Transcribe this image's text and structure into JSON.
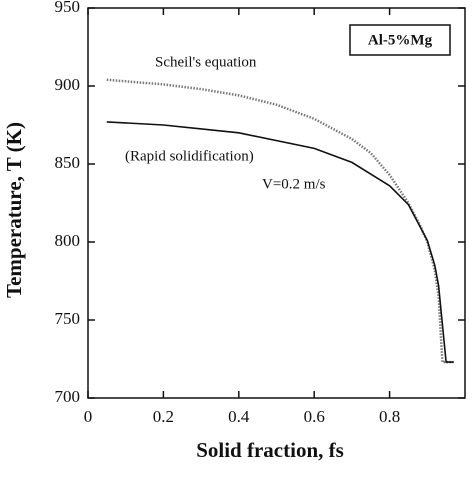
{
  "chart_data": {
    "type": "line",
    "xlabel": "Solid fraction,  fs",
    "ylabel": "Temperature,  T (K)",
    "xlim": [
      0,
      1.0
    ],
    "ylim": [
      700,
      950
    ],
    "xticks": [
      0,
      0.2,
      0.4,
      0.6,
      0.8
    ],
    "yticks": [
      700,
      750,
      800,
      850,
      900,
      950
    ],
    "legend_box": "Al-5%Mg",
    "annotations": [
      "Scheil's equation",
      "(Rapid solidification)",
      "V=0.2 m/s"
    ],
    "series": [
      {
        "name": "Scheil's equation",
        "color": "#777777",
        "style": "dotted",
        "x": [
          0.05,
          0.1,
          0.2,
          0.3,
          0.4,
          0.5,
          0.6,
          0.7,
          0.75,
          0.8,
          0.85,
          0.88,
          0.9,
          0.92,
          0.93,
          0.94,
          0.97
        ],
        "values": [
          904,
          903,
          901,
          898,
          894,
          888,
          879,
          866,
          857,
          843,
          825,
          811,
          800,
          782,
          765,
          723,
          723
        ]
      },
      {
        "name": "(Rapid solidification)",
        "color": "#111111",
        "style": "solid",
        "x": [
          0.05,
          0.2,
          0.4,
          0.6,
          0.7,
          0.8,
          0.85,
          0.9,
          0.92,
          0.93,
          0.95,
          0.97
        ],
        "values": [
          877,
          875,
          870,
          860,
          851,
          836,
          824,
          801,
          785,
          772,
          723,
          723
        ]
      }
    ]
  }
}
